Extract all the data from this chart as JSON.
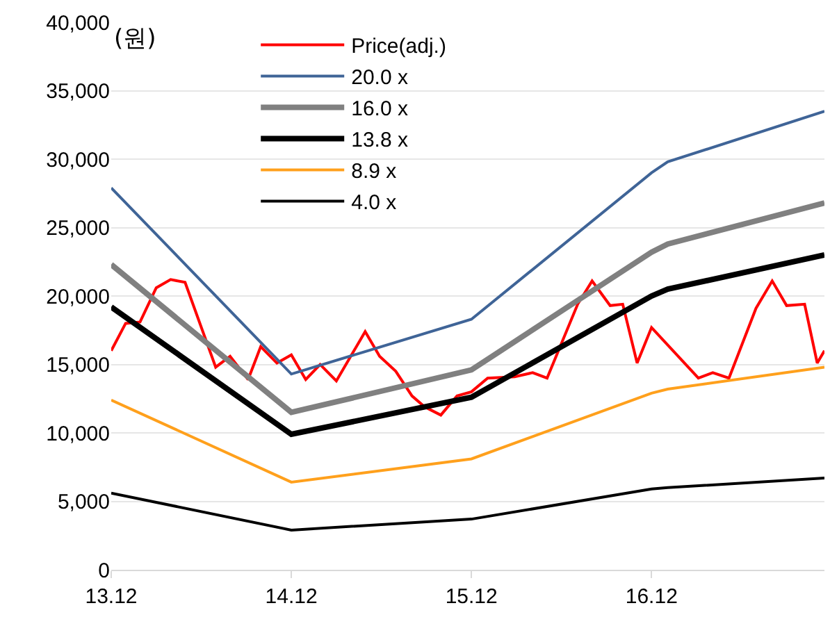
{
  "chart_data": {
    "type": "line",
    "annotations": [
      "(원)"
    ],
    "xlim": [
      13.12,
      17.08
    ],
    "xticks": [
      13.12,
      14.12,
      15.12,
      16.12
    ],
    "ylim": [
      0,
      40000
    ],
    "yticks": [
      {
        "value": 0,
        "label": "0"
      },
      {
        "value": 5000,
        "label": "5,000"
      },
      {
        "value": 10000,
        "label": "10,000"
      },
      {
        "value": 15000,
        "label": "15,000"
      },
      {
        "value": 20000,
        "label": "20,000"
      },
      {
        "value": 25000,
        "label": "25,000"
      },
      {
        "value": 30000,
        "label": "30,000"
      },
      {
        "value": 35000,
        "label": "35,000"
      },
      {
        "value": 40000,
        "label": "40,000"
      }
    ],
    "grid": "y",
    "legend": "top left",
    "series": [
      {
        "name": "Price(adj.)",
        "color": "#ff0000",
        "x": [
          13.12,
          13.2,
          13.28,
          13.37,
          13.45,
          13.53,
          13.7,
          13.78,
          13.88,
          13.95,
          14.04,
          14.12,
          14.2,
          14.28,
          14.37,
          14.53,
          14.61,
          14.7,
          14.79,
          14.86,
          14.95,
          15.04,
          15.12,
          15.21,
          15.36,
          15.46,
          15.54,
          15.71,
          15.79,
          15.89,
          15.96,
          16.04,
          16.12,
          16.38,
          16.46,
          16.55,
          16.7,
          16.79,
          16.87,
          16.97,
          17.04,
          17.08
        ],
        "values": [
          16000,
          18000,
          18100,
          20600,
          21200,
          21000,
          14800,
          15600,
          13900,
          16300,
          15100,
          15700,
          13900,
          15000,
          13800,
          17400,
          15600,
          14500,
          12700,
          11900,
          11300,
          12700,
          13000,
          14000,
          14100,
          14400,
          14000,
          19400,
          21100,
          19300,
          19400,
          15100,
          17700,
          14000,
          14400,
          14000,
          19100,
          21100,
          19300,
          19400,
          15100,
          16000
        ]
      },
      {
        "name": "20.0 x",
        "color": "#3f6497",
        "x": [
          13.12,
          14.12,
          15.12,
          16.12,
          16.21,
          17.08
        ],
        "values": [
          27900,
          14300,
          18300,
          29000,
          29800,
          33500
        ]
      },
      {
        "name": "16.0 x",
        "color": "#808080",
        "x": [
          13.12,
          14.12,
          15.12,
          16.12,
          16.21,
          17.08
        ],
        "values": [
          22300,
          11500,
          14600,
          23200,
          23800,
          26800
        ]
      },
      {
        "name": "13.8 x",
        "color": "#000000",
        "x": [
          13.12,
          14.12,
          15.12,
          16.12,
          16.21,
          17.08
        ],
        "values": [
          19200,
          9900,
          12600,
          20000,
          20500,
          23000
        ]
      },
      {
        "name": "8.9 x",
        "color": "#ffa01c",
        "x": [
          13.12,
          14.12,
          15.12,
          16.12,
          16.21,
          17.08
        ],
        "values": [
          12400,
          6400,
          8100,
          12900,
          13200,
          14800
        ]
      },
      {
        "name": "4.0 x",
        "color": "#000000",
        "x": [
          13.12,
          14.12,
          15.12,
          16.12,
          16.21,
          17.08
        ],
        "values": [
          5600,
          2900,
          3700,
          5900,
          6000,
          6700
        ]
      }
    ]
  }
}
